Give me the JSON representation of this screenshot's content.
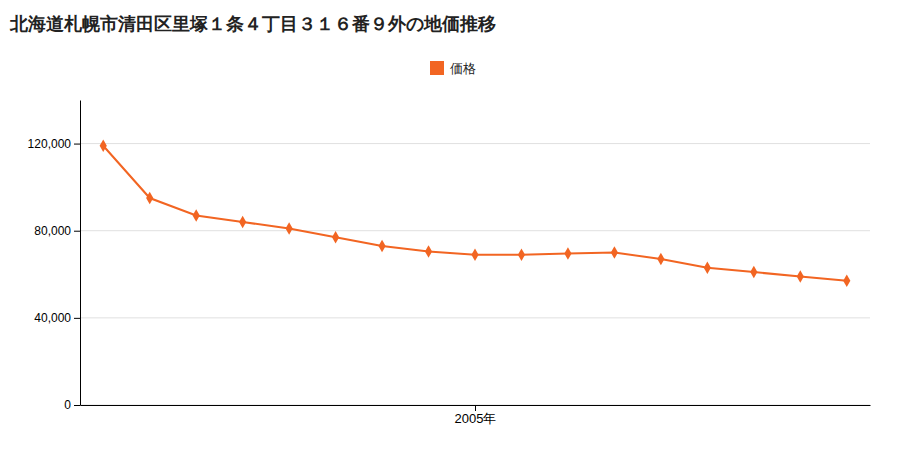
{
  "chart_data": {
    "type": "line",
    "title": "北海道札幌市清田区里塚１条４丁目３１６番９外の地価推移",
    "x": [
      1997,
      1998,
      1999,
      2000,
      2001,
      2002,
      2003,
      2004,
      2005,
      2006,
      2007,
      2008,
      2009,
      2010,
      2011,
      2012,
      2013
    ],
    "series": [
      {
        "name": "価格",
        "color": "#f26522",
        "marker": "diamond",
        "values": [
          119000,
          95000,
          87000,
          84000,
          81000,
          77000,
          73000,
          70500,
          69000,
          69000,
          69500,
          70000,
          67000,
          63000,
          61000,
          59000,
          57000
        ]
      }
    ],
    "xlim": [
      1996.5,
      2013.5
    ],
    "xticks": [
      {
        "value": 2005,
        "label": "2005年"
      }
    ],
    "ylim": [
      0,
      140000
    ],
    "yticks": [
      0,
      {
        "value": 40000,
        "label": "40,000"
      },
      {
        "value": 80000,
        "label": "80,000"
      },
      {
        "value": 120000,
        "label": "120,000"
      }
    ],
    "grid": "y",
    "legend": "top"
  }
}
